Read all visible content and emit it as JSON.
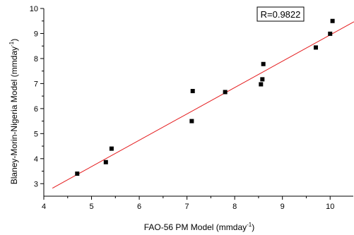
{
  "chart_data": {
    "type": "scatter",
    "xlabel": "FAO-56 PM Model (mmday",
    "xlabel_sup": "-1",
    "xlabel_suffix": ")",
    "ylabel": "Blaney-Morin-Nigeria Model (mmday",
    "ylabel_sup": "-1",
    "ylabel_suffix": ")",
    "xlim": [
      4,
      10.5
    ],
    "ylim": [
      2.5,
      10
    ],
    "x_ticks": [
      4,
      5,
      6,
      7,
      8,
      9,
      10
    ],
    "y_ticks": [
      3,
      4,
      5,
      6,
      7,
      8,
      9,
      10
    ],
    "grid": false,
    "series": [
      {
        "points": [
          {
            "x": 4.7,
            "y": 3.4
          },
          {
            "x": 5.3,
            "y": 3.86
          },
          {
            "x": 5.42,
            "y": 4.4
          },
          {
            "x": 7.1,
            "y": 5.5
          },
          {
            "x": 7.12,
            "y": 6.7
          },
          {
            "x": 7.8,
            "y": 6.66
          },
          {
            "x": 8.55,
            "y": 6.97
          },
          {
            "x": 8.58,
            "y": 7.17
          },
          {
            "x": 8.6,
            "y": 7.78
          },
          {
            "x": 9.7,
            "y": 8.44
          },
          {
            "x": 10.0,
            "y": 8.99
          },
          {
            "x": 10.05,
            "y": 9.5
          }
        ],
        "marker_color": "#000000"
      }
    ],
    "fit_line": {
      "x": [
        4.18,
        10.5
      ],
      "y": [
        2.82,
        9.47
      ],
      "color": "#e41a1c"
    },
    "annotation": "R=0.9822"
  }
}
